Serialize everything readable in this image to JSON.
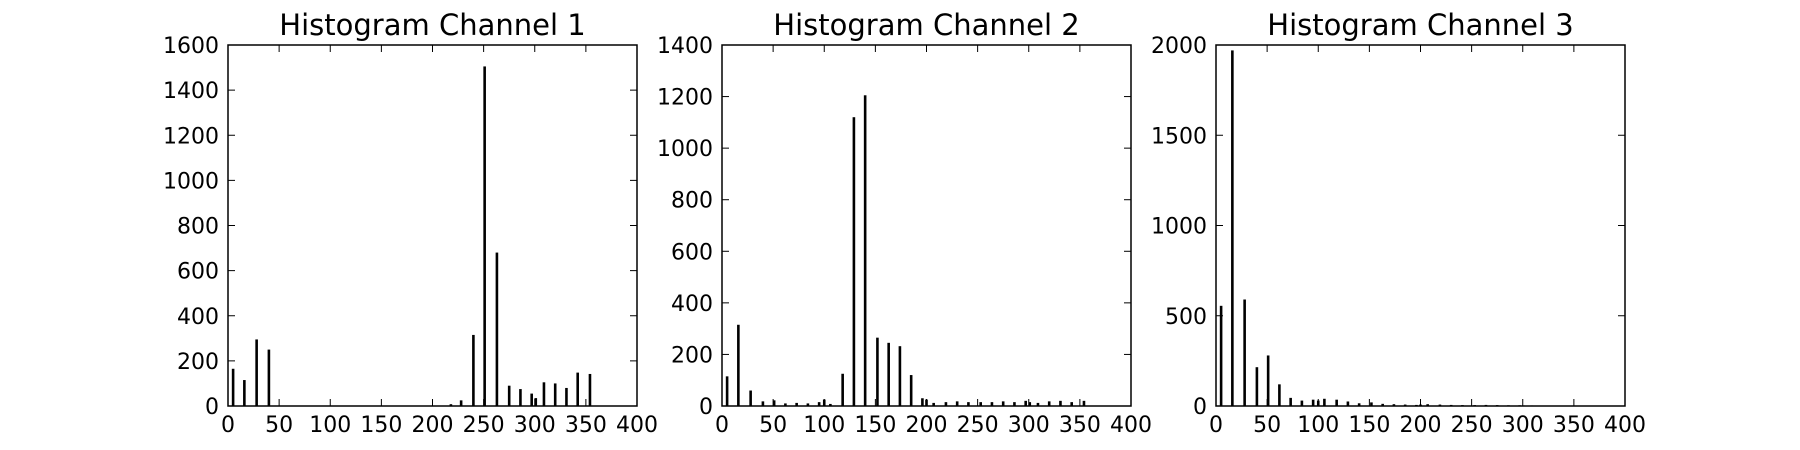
{
  "figure": {
    "background": "#ffffff",
    "bar_color": "#000000",
    "frame_color": "#000000"
  },
  "chart_data": [
    {
      "type": "bar",
      "title": "Histogram Channel 1",
      "xlabel": "",
      "ylabel": "",
      "xlim": [
        0,
        400
      ],
      "ylim": [
        0,
        1600
      ],
      "xticks": [
        0,
        50,
        100,
        150,
        200,
        250,
        300,
        350,
        400
      ],
      "yticks": [
        0,
        200,
        400,
        600,
        800,
        1000,
        1200,
        1400,
        1600
      ],
      "grid": false,
      "x": [
        5,
        16,
        28,
        40,
        218,
        228,
        240,
        251,
        263,
        275,
        286,
        297,
        301,
        309,
        320,
        331,
        342,
        354
      ],
      "values": [
        165,
        115,
        295,
        250,
        8,
        25,
        315,
        1505,
        680,
        90,
        75,
        55,
        35,
        105,
        100,
        80,
        148,
        142
      ]
    },
    {
      "type": "bar",
      "title": "Histogram Channel 2",
      "xlabel": "",
      "ylabel": "",
      "xlim": [
        0,
        400
      ],
      "ylim": [
        0,
        1400
      ],
      "xticks": [
        0,
        50,
        100,
        150,
        200,
        250,
        300,
        350,
        400
      ],
      "yticks": [
        0,
        200,
        400,
        600,
        800,
        1000,
        1200,
        1400
      ],
      "grid": false,
      "x": [
        5,
        16,
        28,
        40,
        51,
        62,
        73,
        84,
        95,
        100,
        106,
        118,
        129,
        140,
        152,
        163,
        174,
        185,
        196,
        200,
        207,
        219,
        230,
        241,
        253,
        264,
        275,
        286,
        297,
        301,
        309,
        320,
        331,
        342,
        354
      ],
      "values": [
        115,
        315,
        60,
        18,
        22,
        10,
        12,
        10,
        15,
        25,
        8,
        125,
        1120,
        1205,
        265,
        245,
        232,
        120,
        30,
        25,
        12,
        15,
        18,
        15,
        15,
        15,
        18,
        15,
        20,
        15,
        12,
        18,
        20,
        15,
        20
      ]
    },
    {
      "type": "bar",
      "title": "Histogram Channel 3",
      "xlabel": "",
      "ylabel": "",
      "xlim": [
        0,
        400
      ],
      "ylim": [
        0,
        2000
      ],
      "xticks": [
        0,
        50,
        100,
        150,
        200,
        250,
        300,
        350,
        400
      ],
      "yticks": [
        0,
        500,
        1000,
        1500,
        2000
      ],
      "grid": false,
      "x": [
        5,
        16,
        28,
        40,
        51,
        62,
        73,
        84,
        95,
        100,
        106,
        118,
        129,
        140,
        152,
        163,
        174,
        185,
        196,
        200,
        207,
        219,
        230,
        241,
        253,
        264,
        275,
        286,
        297,
        301,
        309,
        320,
        331
      ],
      "values": [
        555,
        1970,
        590,
        215,
        280,
        120,
        45,
        30,
        35,
        30,
        40,
        35,
        25,
        15,
        20,
        12,
        10,
        8,
        6,
        8,
        10,
        8,
        6,
        5,
        5,
        6,
        5,
        4,
        4,
        3,
        3,
        2,
        2
      ]
    }
  ]
}
